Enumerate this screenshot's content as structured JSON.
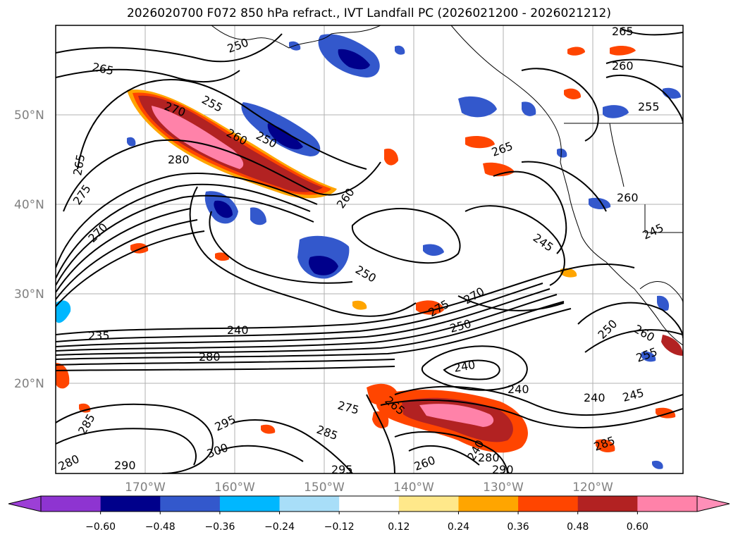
{
  "title": "2026020700 F072 850 hPa refract., IVT Landfall PC (2026021200 - 2026021212)",
  "lat_labels": [
    "50°N",
    "40°N",
    "30°N",
    "20°N"
  ],
  "lon_labels": [
    "170°W",
    "160°W",
    "150°W",
    "140°W",
    "130°W",
    "120°W"
  ],
  "colorbar": {
    "ticks": [
      "−0.60",
      "−0.48",
      "−0.36",
      "−0.24",
      "−0.12",
      "0.12",
      "0.24",
      "0.36",
      "0.48",
      "0.60"
    ],
    "colors": [
      "#8e34d1",
      "#00008b",
      "#3358cc",
      "#00b7ff",
      "#a8def8",
      "#ffffff",
      "#ffe88a",
      "#ffa500",
      "#ff4500",
      "#b22222",
      "#ff82a9"
    ],
    "extend_colors": {
      "low": "#9c3fd6",
      "high": "#ff8fb8"
    }
  },
  "contour_labels": [
    "265",
    "265",
    "265",
    "265",
    "260",
    "255",
    "255",
    "250",
    "250",
    "250",
    "250",
    "250",
    "245",
    "245",
    "245",
    "270",
    "280",
    "275",
    "260",
    "260",
    "260",
    "240",
    "240",
    "240",
    "240",
    "240",
    "235",
    "280",
    "275",
    "275",
    "270",
    "270",
    "265",
    "285",
    "285",
    "295",
    "290",
    "295",
    "300",
    "280",
    "260",
    "290",
    "280",
    "255",
    "260",
    "285"
  ]
}
